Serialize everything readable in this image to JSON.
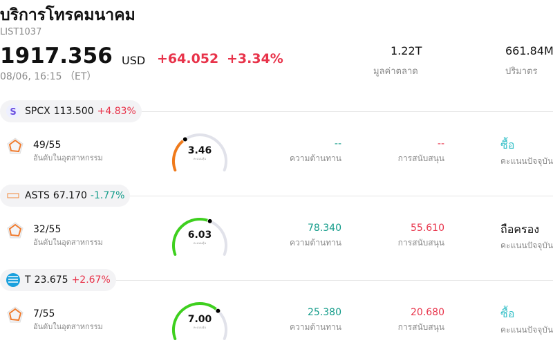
{
  "header": {
    "title": "บริการโทรคมนาคม",
    "code": "LIST1037",
    "price": "1917.356",
    "currency": "USD",
    "change": "+64.052",
    "change_pct": "+3.34%",
    "time": "08/06, 16:15 （ET）"
  },
  "stats": [
    {
      "value": "1.22T",
      "label": "มูลค่าตลาด"
    },
    {
      "value": "661.84M",
      "label": "ปริมาตร"
    }
  ],
  "stocks": [
    {
      "logo_text": "S",
      "ticker": "SPCX",
      "price": "113.500",
      "change": "+4.83%",
      "rank": "49/55",
      "rank_label": "อันดับในอุตสาหกรรม",
      "score": "3.46",
      "score_label": "คะแนนหุ้น",
      "resistance": "--",
      "resistance_label": "ความต้านทาน",
      "support": "--",
      "support_label": "การสนับสนุน",
      "rating": "ซื้อ",
      "rating_label": "คะแนนปัจจุบัน"
    },
    {
      "ticker": "ASTS",
      "price": "67.170",
      "change": "-1.77%",
      "rank": "32/55",
      "rank_label": "อันดับในอุตสาหกรรม",
      "score": "6.03",
      "score_label": "คะแนนหุ้น",
      "resistance": "78.340",
      "resistance_label": "ความต้านทาน",
      "support": "55.610",
      "support_label": "การสนับสนุน",
      "rating": "ถือครอง",
      "rating_label": "คะแนนปัจจุบัน"
    },
    {
      "ticker": "T",
      "price": "23.675",
      "change": "+2.67%",
      "rank": "7/55",
      "rank_label": "อันดับในอุตสาหกรรม",
      "score": "7.00",
      "score_label": "คะแนนหุ้น",
      "resistance": "25.380",
      "resistance_label": "ความต้านทาน",
      "support": "20.680",
      "support_label": "การสนับสนุน",
      "rating": "ซื้อ",
      "rating_label": "คะแนนปัจจุบัน"
    }
  ]
}
